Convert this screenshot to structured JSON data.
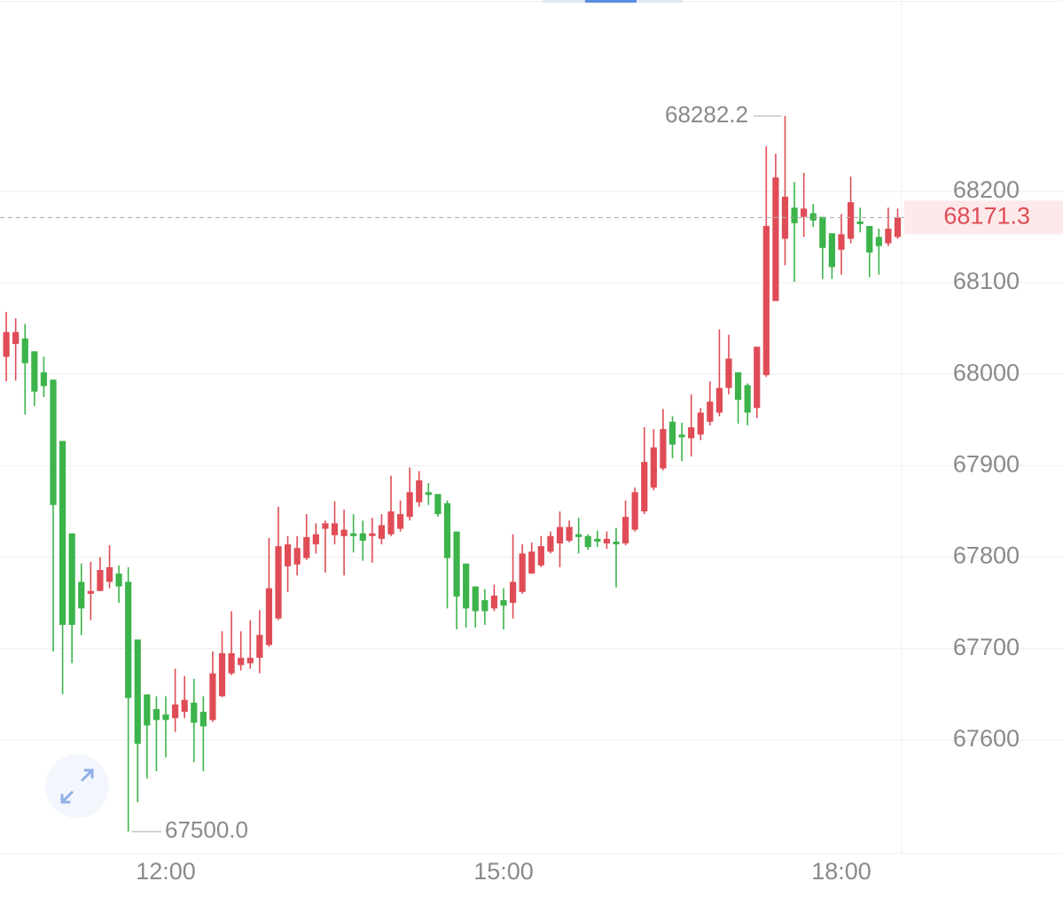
{
  "chart_data": {
    "type": "candlestick",
    "categories": [
      null,
      null,
      null,
      null,
      null,
      null,
      null,
      null,
      null,
      null,
      null,
      null,
      null,
      null,
      null,
      null,
      null,
      "12:00",
      null,
      null,
      null,
      null,
      null,
      null,
      null,
      null,
      null,
      null,
      null,
      null,
      null,
      null,
      null,
      null,
      null,
      null,
      null,
      null,
      null,
      null,
      null,
      null,
      null,
      null,
      null,
      null,
      null,
      null,
      null,
      null,
      null,
      null,
      null,
      "15:00",
      null,
      null,
      null,
      null,
      null,
      null,
      null,
      null,
      null,
      null,
      null,
      null,
      null,
      null,
      null,
      null,
      null,
      null,
      null,
      null,
      null,
      null,
      null,
      null,
      null,
      null,
      null,
      null,
      null,
      null,
      null,
      null,
      null,
      null,
      null,
      "18:00",
      null,
      null,
      null,
      null,
      null,
      null
    ],
    "open": [
      68019,
      68033,
      68039,
      68025,
      68002,
      67994,
      67927,
      67826,
      67773,
      67760,
      67763,
      67773,
      67782,
      67773,
      67710,
      67650,
      67634,
      67628,
      67624,
      67631,
      67641,
      67631,
      67622,
      67648,
      67673,
      67682,
      67684,
      67690,
      67704,
      67733,
      67790,
      67792,
      67799,
      67814,
      67831,
      67824,
      67823,
      67826,
      67826,
      67823,
      67820,
      67825,
      67831,
      67844,
      67860,
      67871,
      67869,
      67859,
      67828,
      67793,
      67768,
      67753,
      67744,
      67753,
      67750,
      67762,
      67782,
      67791,
      67806,
      67815,
      67818,
      67825,
      67823,
      67820,
      67815,
      67817,
      67815,
      67830,
      67850,
      67876,
      67897,
      67948,
      67934,
      67930,
      67934,
      67948,
      67958,
      67985,
      68002,
      67988,
      67963,
      67999,
      68080,
      68148,
      68182,
      68172,
      68176,
      68172,
      68154,
      68136,
      68148,
      68167,
      68162,
      68150,
      68143,
      68150
    ],
    "high": [
      68068,
      68061,
      68055,
      68025,
      68019,
      67994,
      67927,
      67826,
      67793,
      67795,
      67800,
      67813,
      67791,
      67789,
      67710,
      67650,
      67648,
      67648,
      67678,
      67670,
      67667,
      67648,
      67697,
      67719,
      67741,
      67719,
      67731,
      67742,
      67821,
      67855,
      67823,
      67823,
      67847,
      67837,
      67840,
      67861,
      67852,
      67847,
      67840,
      67843,
      67847,
      67889,
      67862,
      67898,
      67894,
      67881,
      67869,
      67862,
      67828,
      67793,
      67768,
      67765,
      67770,
      67766,
      67825,
      67814,
      67816,
      67823,
      67828,
      67850,
      67840,
      67843,
      67825,
      67829,
      67828,
      67832,
      67862,
      67876,
      67942,
      67940,
      67962,
      67954,
      67947,
      67978,
      67963,
      67992,
      68049,
      68043,
      68002,
      67990,
      68030,
      68249,
      68241,
      68282.2,
      68210,
      68220,
      68186,
      68172,
      68154,
      68175,
      68216,
      68182,
      68162,
      68159,
      68182,
      68181
    ],
    "low": [
      67992,
      67993,
      67956,
      67965,
      67975,
      67697,
      67650,
      67684,
      67715,
      67731,
      67763,
      67766,
      67750,
      67500,
      67532,
      67558,
      67566,
      67581,
      67609,
      67624,
      67576,
      67566,
      67620,
      67647,
      67671,
      67676,
      67678,
      67673,
      67702,
      67731,
      67762,
      67780,
      67797,
      67804,
      67783,
      67814,
      67780,
      67805,
      67796,
      67794,
      67814,
      67823,
      67828,
      67840,
      67855,
      67857,
      67844,
      67744,
      67721,
      67723,
      67723,
      67726,
      67741,
      67721,
      67733,
      67760,
      67782,
      67789,
      67804,
      67789,
      67816,
      67804,
      67808,
      67811,
      67809,
      67767,
      67813,
      67828,
      67847,
      67873,
      67895,
      67908,
      67905,
      67910,
      67928,
      67944,
      67954,
      67978,
      67946,
      67944,
      67952,
      67997,
      68080,
      68119,
      68101,
      68150,
      68161,
      68104,
      68104,
      68109,
      68143,
      68155,
      68106,
      68109,
      68140,
      68148
    ],
    "close": [
      68046,
      68046,
      68012,
      67981,
      67987,
      67857,
      67726,
      67726,
      67744,
      67763,
      67786,
      67789,
      67768,
      67646,
      67596,
      67616,
      67622,
      67622,
      67639,
      67644,
      67619,
      67615,
      67673,
      67695,
      67695,
      67690,
      67690,
      67715,
      67766,
      67812,
      67814,
      67810,
      67822,
      67825,
      67837,
      67837,
      67830,
      67823,
      67818,
      67826,
      67835,
      67850,
      67847,
      67871,
      67884,
      67868,
      67847,
      67799,
      67757,
      67744,
      67741,
      67741,
      67758,
      67747,
      67773,
      67804,
      67806,
      67812,
      67823,
      67833,
      67833,
      67822,
      67811,
      67817,
      67820,
      67814,
      67844,
      67871,
      67904,
      67920,
      67940,
      67923,
      67931,
      67942,
      67958,
      67970,
      67985,
      68017,
      67972,
      67958,
      68030,
      68162,
      68215,
      68194,
      68165,
      68181,
      68168,
      68138,
      68117,
      68153,
      68188,
      68164,
      68133,
      68140,
      68159,
      68171.3
    ],
    "up_color": "#e04c56",
    "down_color": "#3cb44b",
    "ylim": [
      67476,
      68409
    ],
    "yticks": [
      67600,
      67700,
      67800,
      67900,
      68000,
      68100,
      68200
    ],
    "grid": true,
    "max_label": {
      "value": 68282.2,
      "label": "68282.2"
    },
    "min_label": {
      "value": 67500,
      "label": "67500.0"
    },
    "last_price": {
      "value": 68171.3,
      "label": "68171.3"
    }
  }
}
